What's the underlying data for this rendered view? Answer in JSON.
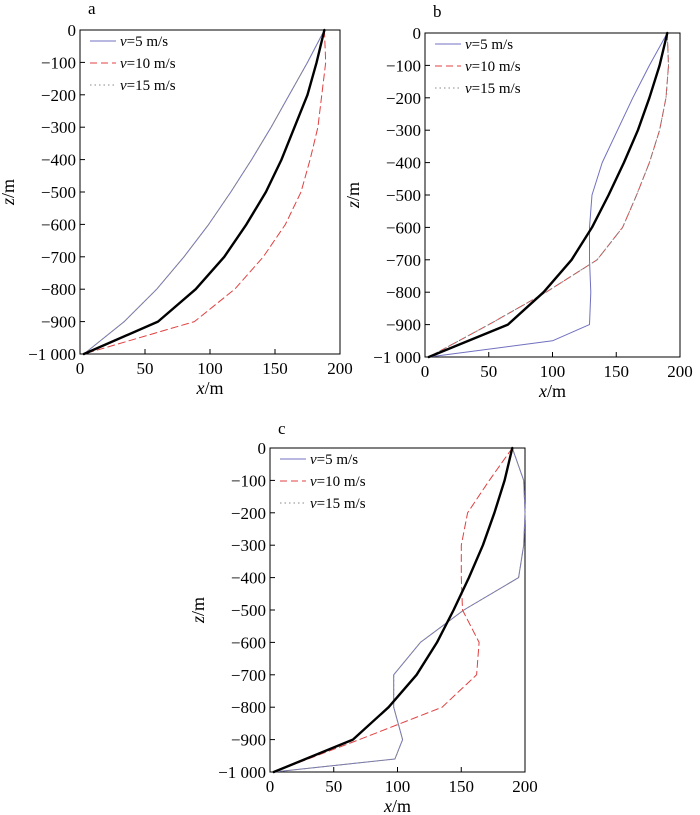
{
  "chart_data": [
    {
      "type": "line",
      "panel_label": "a",
      "xlabel": {
        "var": "x",
        "unit": "/m"
      },
      "ylabel": {
        "var": "z",
        "unit": "/m"
      },
      "xlim": [
        0,
        200
      ],
      "ylim": [
        -1000,
        0
      ],
      "x_ticks": [
        "0",
        "50",
        "100",
        "150",
        "200"
      ],
      "y_ticks": [
        "0",
        "−100",
        "−200",
        "−300",
        "−400",
        "−500",
        "−600",
        "−700",
        "−800",
        "−900",
        "−1 000"
      ],
      "legend": [
        {
          "var": "v",
          "text": "=5 m/s"
        },
        {
          "var": "v",
          "text": "=10 m/s"
        },
        {
          "var": "v",
          "text": "=15 m/s"
        }
      ],
      "series": [
        {
          "style": "solid",
          "color": "#7070c0",
          "points": [
            [
              188,
              0
            ],
            [
              175,
              -100
            ],
            [
              161,
              -200
            ],
            [
              147,
              -300
            ],
            [
              132,
              -400
            ],
            [
              116,
              -500
            ],
            [
              99,
              -600
            ],
            [
              80,
              -700
            ],
            [
              59,
              -800
            ],
            [
              34,
              -900
            ],
            [
              3,
              -1000
            ]
          ]
        },
        {
          "style": "dashed",
          "color": "#e04040",
          "points": [
            [
              188,
              0
            ],
            [
              189,
              -100
            ],
            [
              186,
              -200
            ],
            [
              183,
              -300
            ],
            [
              177,
              -400
            ],
            [
              170,
              -500
            ],
            [
              158,
              -600
            ],
            [
              141,
              -700
            ],
            [
              119,
              -800
            ],
            [
              88,
              -900
            ],
            [
              3,
              -1000
            ]
          ]
        },
        {
          "style": "dotted",
          "color": "#888888",
          "points": [
            [
              188,
              0
            ],
            [
              175,
              -100
            ],
            [
              161,
              -200
            ],
            [
              147,
              -300
            ],
            [
              132,
              -400
            ],
            [
              116,
              -500
            ],
            [
              99,
              -600
            ],
            [
              80,
              -700
            ],
            [
              59,
              -800
            ],
            [
              34,
              -900
            ],
            [
              3,
              -1000
            ]
          ]
        },
        {
          "style": "bold",
          "color": "#000000",
          "points": [
            [
              188,
              0
            ],
            [
              182,
              -100
            ],
            [
              175,
              -200
            ],
            [
              165,
              -300
            ],
            [
              155,
              -400
            ],
            [
              143,
              -500
            ],
            [
              128,
              -600
            ],
            [
              111,
              -700
            ],
            [
              89,
              -800
            ],
            [
              60,
              -900
            ],
            [
              3,
              -1000
            ]
          ]
        }
      ]
    },
    {
      "type": "line",
      "panel_label": "b",
      "xlabel": {
        "var": "x",
        "unit": "/m"
      },
      "ylabel": {
        "var": "z",
        "unit": "/m"
      },
      "xlim": [
        0,
        200
      ],
      "ylim": [
        -1000,
        0
      ],
      "x_ticks": [
        "0",
        "50",
        "100",
        "150",
        "200"
      ],
      "y_ticks": [
        "0",
        "−100",
        "−200",
        "−300",
        "−400",
        "−500",
        "−600",
        "−700",
        "−800",
        "−900",
        "−1 000"
      ],
      "legend": [
        {
          "var": "v",
          "text": "=5 m/s"
        },
        {
          "var": "v",
          "text": "=10 m/s"
        },
        {
          "var": "v",
          "text": "=15 m/s"
        }
      ],
      "series": [
        {
          "style": "solid",
          "color": "#7070c0",
          "points": [
            [
              190,
              0
            ],
            [
              176,
              -100
            ],
            [
              163,
              -200
            ],
            [
              151,
              -300
            ],
            [
              139,
              -400
            ],
            [
              131,
              -500
            ],
            [
              129,
              -600
            ],
            [
              129,
              -700
            ],
            [
              130,
              -800
            ],
            [
              129,
              -900
            ],
            [
              100,
              -950
            ],
            [
              3,
              -1000
            ]
          ]
        },
        {
          "style": "dashed",
          "color": "#e04040",
          "points": [
            [
              190,
              0
            ],
            [
              191,
              -100
            ],
            [
              189,
              -200
            ],
            [
              184,
              -300
            ],
            [
              176,
              -400
            ],
            [
              166,
              -500
            ],
            [
              155,
              -600
            ],
            [
              135,
              -700
            ],
            [
              95,
              -800
            ],
            [
              50,
              -900
            ],
            [
              3,
              -1000
            ]
          ]
        },
        {
          "style": "dotted",
          "color": "#888888",
          "points": [
            [
              190,
              0
            ],
            [
              191,
              -100
            ],
            [
              189,
              -200
            ],
            [
              184,
              -300
            ],
            [
              176,
              -400
            ],
            [
              166,
              -500
            ],
            [
              155,
              -600
            ],
            [
              135,
              -700
            ],
            [
              95,
              -800
            ],
            [
              50,
              -900
            ],
            [
              3,
              -1000
            ]
          ]
        },
        {
          "style": "bold",
          "color": "#000000",
          "points": [
            [
              190,
              0
            ],
            [
              184,
              -100
            ],
            [
              176,
              -200
            ],
            [
              167,
              -300
            ],
            [
              156,
              -400
            ],
            [
              144,
              -500
            ],
            [
              131,
              -600
            ],
            [
              115,
              -700
            ],
            [
              93,
              -800
            ],
            [
              65,
              -900
            ],
            [
              3,
              -1000
            ]
          ]
        }
      ]
    },
    {
      "type": "line",
      "panel_label": "c",
      "xlabel": {
        "var": "x",
        "unit": "/m"
      },
      "ylabel": {
        "var": "z",
        "unit": "/m"
      },
      "xlim": [
        0,
        200
      ],
      "ylim": [
        -1000,
        0
      ],
      "x_ticks": [
        "0",
        "50",
        "100",
        "150",
        "200"
      ],
      "y_ticks": [
        "0",
        "−100",
        "−200",
        "−300",
        "−400",
        "−500",
        "−600",
        "−700",
        "−800",
        "−900",
        "−1 000"
      ],
      "legend": [
        {
          "var": "v",
          "text": "=5 m/s"
        },
        {
          "var": "v",
          "text": "=10 m/s"
        },
        {
          "var": "v",
          "text": "=15 m/s"
        }
      ],
      "series": [
        {
          "style": "solid",
          "color": "#7070c0",
          "points": [
            [
              190,
              0
            ],
            [
              199,
              -100
            ],
            [
              200,
              -200
            ],
            [
              199,
              -300
            ],
            [
              195,
              -400
            ],
            [
              152,
              -500
            ],
            [
              118,
              -600
            ],
            [
              97,
              -700
            ],
            [
              97,
              -800
            ],
            [
              104,
              -900
            ],
            [
              98,
              -960
            ],
            [
              3,
              -1000
            ]
          ]
        },
        {
          "style": "dashed",
          "color": "#e04040",
          "points": [
            [
              190,
              0
            ],
            [
              172,
              -100
            ],
            [
              155,
              -200
            ],
            [
              150,
              -300
            ],
            [
              150,
              -400
            ],
            [
              151,
              -500
            ],
            [
              164,
              -600
            ],
            [
              162,
              -700
            ],
            [
              135,
              -800
            ],
            [
              70,
              -900
            ],
            [
              3,
              -1000
            ]
          ]
        },
        {
          "style": "dotted",
          "color": "#888888",
          "points": [
            [
              190,
              0
            ],
            [
              199,
              -100
            ],
            [
              200,
              -200
            ],
            [
              199,
              -300
            ],
            [
              195,
              -400
            ],
            [
              152,
              -500
            ],
            [
              118,
              -600
            ],
            [
              97,
              -700
            ],
            [
              97,
              -800
            ],
            [
              104,
              -900
            ],
            [
              98,
              -960
            ],
            [
              3,
              -1000
            ]
          ]
        },
        {
          "style": "bold",
          "color": "#000000",
          "points": [
            [
              190,
              0
            ],
            [
              184,
              -100
            ],
            [
              176,
              -200
            ],
            [
              167,
              -300
            ],
            [
              156,
              -400
            ],
            [
              144,
              -500
            ],
            [
              131,
              -600
            ],
            [
              115,
              -700
            ],
            [
              93,
              -800
            ],
            [
              65,
              -900
            ],
            [
              3,
              -1000
            ]
          ]
        }
      ]
    }
  ]
}
